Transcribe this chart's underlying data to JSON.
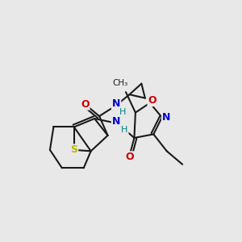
{
  "bg_color": "#e8e8e8",
  "bond_color": "#1a1a1a",
  "bond_width": 1.5,
  "atom_colors": {
    "N": "#0000cc",
    "O": "#cc0000",
    "S": "#b8b800",
    "H": "#008080",
    "C": "#1a1a1a"
  },
  "figsize": [
    3.0,
    3.0
  ],
  "dpi": 100
}
